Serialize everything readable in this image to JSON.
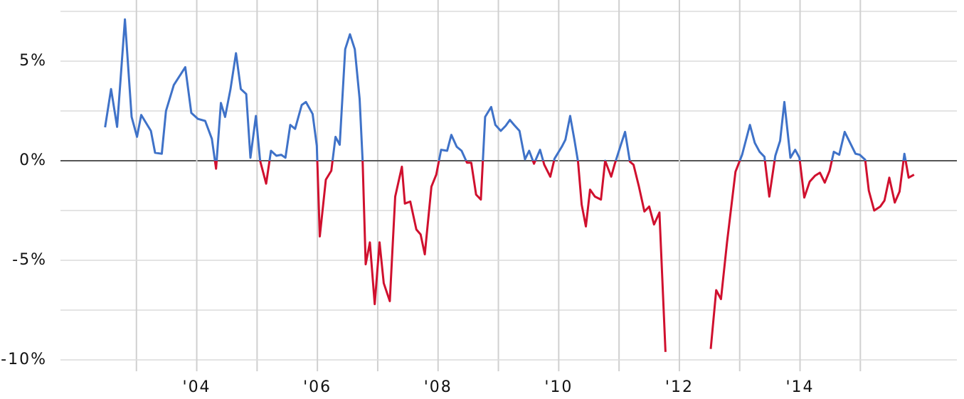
{
  "chart_data": {
    "type": "line",
    "x": [
      2002.48,
      2002.58,
      2002.68,
      2002.81,
      2002.92,
      2003.01,
      2003.08,
      2003.24,
      2003.31,
      2003.42,
      2003.49,
      2003.62,
      2003.81,
      2003.91,
      2004.02,
      2004.14,
      2004.25,
      2004.32,
      2004.4,
      2004.47,
      2004.56,
      2004.65,
      2004.73,
      2004.82,
      2004.89,
      2004.98,
      2005.05,
      2005.15,
      2005.23,
      2005.32,
      2005.4,
      2005.47,
      2005.55,
      2005.63,
      2005.74,
      2005.81,
      2005.92,
      2005.99,
      2006.04,
      2006.14,
      2006.23,
      2006.3,
      2006.37,
      2006.46,
      2006.54,
      2006.62,
      2006.7,
      2006.75,
      2006.8,
      2006.87,
      2006.95,
      2007.03,
      2007.1,
      2007.2,
      2007.29,
      2007.4,
      2007.45,
      2007.54,
      2007.64,
      2007.71,
      2007.78,
      2007.89,
      2007.97,
      2008.05,
      2008.15,
      2008.22,
      2008.31,
      2008.39,
      2008.48,
      2008.55,
      2008.63,
      2008.71,
      2008.78,
      2008.88,
      2008.95,
      2009.04,
      2009.12,
      2009.19,
      2009.26,
      2009.35,
      2009.44,
      2009.51,
      2009.59,
      2009.69,
      2009.76,
      2009.86,
      2009.93,
      2010.05,
      2010.11,
      2010.19,
      2010.26,
      2010.32,
      2010.38,
      2010.45,
      2010.52,
      2010.6,
      2010.7,
      2010.77,
      2010.87,
      2010.93,
      2011.03,
      2011.1,
      2011.18,
      2011.24,
      2011.33,
      2011.42,
      2011.5,
      2011.58,
      2011.67,
      2011.77,
      2012.15,
      2012.52,
      2012.61,
      2012.69,
      2012.79,
      2012.93,
      2013.04,
      2013.17,
      2013.25,
      2013.33,
      2013.41,
      2013.49,
      2013.59,
      2013.67,
      2013.74,
      2013.84,
      2013.92,
      2013.99,
      2014.07,
      2014.16,
      2014.25,
      2014.33,
      2014.41,
      2014.49,
      2014.56,
      2014.65,
      2014.74,
      2014.92,
      2014.99,
      2015.08,
      2015.14,
      2015.23,
      2015.33,
      2015.4,
      2015.48,
      2015.57,
      2015.65,
      2015.73,
      2015.8,
      2015.89
    ],
    "values": [
      1.68,
      3.6,
      1.7,
      7.1,
      2.2,
      1.2,
      2.3,
      1.5,
      0.4,
      0.35,
      2.5,
      3.8,
      4.7,
      2.4,
      2.1,
      2.0,
      1.1,
      -0.4,
      2.9,
      2.2,
      3.6,
      5.4,
      3.6,
      3.35,
      0.15,
      2.25,
      0,
      -1.15,
      0.5,
      0.25,
      0.3,
      0.15,
      1.8,
      1.6,
      2.8,
      2.95,
      2.35,
      0.75,
      -3.8,
      -0.95,
      -0.5,
      1.2,
      0.8,
      5.6,
      6.35,
      5.6,
      3.1,
      0,
      -5.2,
      -4.1,
      -7.2,
      -4.1,
      -6.15,
      -7.05,
      -1.8,
      -0.3,
      -2.15,
      -2.05,
      -3.45,
      -3.7,
      -4.7,
      -1.3,
      -0.7,
      0.55,
      0.5,
      1.3,
      0.7,
      0.5,
      -0.1,
      -0.1,
      -1.7,
      -1.95,
      2.2,
      2.7,
      1.8,
      1.5,
      1.75,
      2.05,
      1.8,
      1.5,
      0.07,
      0.5,
      -0.15,
      0.55,
      -0.2,
      -0.8,
      0.1,
      0.7,
      1.05,
      2.25,
      1.05,
      -0.05,
      -2.2,
      -3.3,
      -1.45,
      -1.8,
      -1.95,
      0,
      -0.8,
      -0.15,
      0.8,
      1.45,
      -0.05,
      -0.2,
      -1.3,
      -2.55,
      -2.3,
      -3.2,
      -2.6,
      -9.6,
      null,
      -9.45,
      -6.5,
      -6.95,
      -4.1,
      -0.55,
      0.3,
      1.8,
      0.9,
      0.45,
      0.2,
      -1.8,
      0.25,
      1.0,
      2.95,
      0.15,
      0.55,
      0.15,
      -1.85,
      -1.05,
      -0.75,
      -0.6,
      -1.1,
      -0.5,
      0.45,
      0.3,
      1.45,
      0.35,
      0.3,
      0.05,
      -1.5,
      -2.5,
      -2.3,
      -2.0,
      -0.85,
      -2.1,
      -1.55,
      0.35,
      -0.85,
      -0.7
    ],
    "positive_color": "#3f72c8",
    "negative_color": "#d0102e",
    "xlim": [
      2001.8,
      2016.6
    ],
    "xticks": [
      {
        "value": 2004,
        "label": "'04"
      },
      {
        "value": 2006,
        "label": "'06"
      },
      {
        "value": 2008,
        "label": "'08"
      },
      {
        "value": 2010,
        "label": "'10"
      },
      {
        "value": 2012,
        "label": "'12"
      },
      {
        "value": 2014,
        "label": "'14"
      }
    ],
    "minor_xticks": [
      2003,
      2005,
      2007,
      2009,
      2011,
      2013,
      2015
    ],
    "ylim": [
      -10.75,
      7.75
    ],
    "yticks": [
      {
        "value": -10,
        "label": "-10%"
      },
      {
        "value": -5,
        "label": "-5%"
      },
      {
        "value": 0,
        "label": "0%"
      },
      {
        "value": 5,
        "label": "5%"
      }
    ],
    "minor_yticks": [
      -7.5,
      -2.5,
      2.5,
      7.5
    ],
    "grid": true
  }
}
